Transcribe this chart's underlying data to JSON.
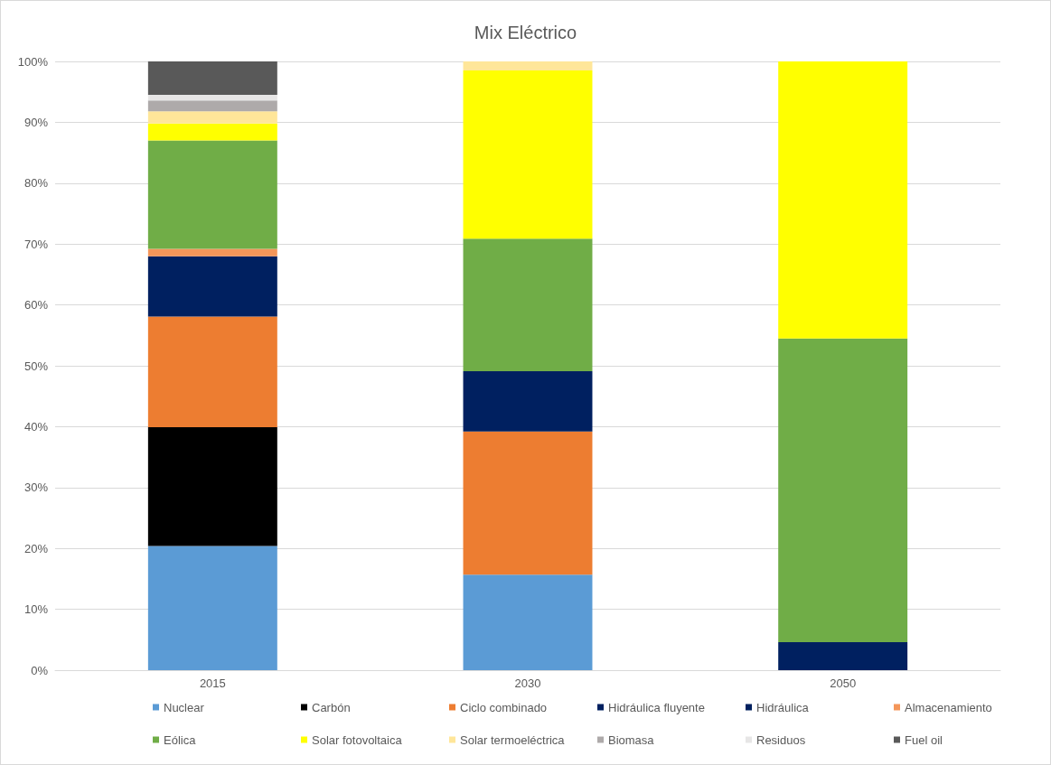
{
  "chart_data": {
    "type": "bar",
    "title": "Mix Eléctrico",
    "stacked": true,
    "categories": [
      "2015",
      "2030",
      "2050"
    ],
    "ylim": [
      0,
      100
    ],
    "yticks": [
      {
        "value": 0,
        "label": "0%"
      },
      {
        "value": 10,
        "label": "10%"
      },
      {
        "value": 20,
        "label": "20%"
      },
      {
        "value": 30,
        "label": "30%"
      },
      {
        "value": 40,
        "label": "40%"
      },
      {
        "value": 50,
        "label": "50%"
      },
      {
        "value": 60,
        "label": "60%"
      },
      {
        "value": 70,
        "label": "70%"
      },
      {
        "value": 80,
        "label": "80%"
      },
      {
        "value": 90,
        "label": "90%"
      },
      {
        "value": 100,
        "label": "100%"
      }
    ],
    "grid": "y",
    "legend": "bottom",
    "series": [
      {
        "name": "Nuclear",
        "color": "#5b9bd5",
        "values": [
          20.4,
          15.7,
          0
        ]
      },
      {
        "name": "Carbón",
        "color": "#000000",
        "values": [
          19.5,
          0,
          0
        ]
      },
      {
        "name": "Ciclo combinado",
        "color": "#ed7d31",
        "values": [
          18.2,
          23.5,
          0
        ]
      },
      {
        "name": "Hidráulica fluyente",
        "color": "#002060",
        "values": [
          9.9,
          9.9,
          4.6
        ]
      },
      {
        "name": "Hidráulica",
        "color": "#00205f",
        "values": [
          0,
          0,
          0
        ]
      },
      {
        "name": "Almacenamiento",
        "color": "#f4965a",
        "values": [
          1.2,
          0,
          0
        ]
      },
      {
        "name": "Eólica",
        "color": "#70ad47",
        "values": [
          17.8,
          21.8,
          49.9
        ]
      },
      {
        "name": "Solar fotovoltaica",
        "color": "#ffff00",
        "values": [
          2.8,
          27.6,
          45.5
        ]
      },
      {
        "name": "Solar termoeléctrica",
        "color": "#ffe699",
        "values": [
          2.0,
          1.5,
          0
        ]
      },
      {
        "name": "Biomasa",
        "color": "#aeaaaa",
        "values": [
          1.8,
          0,
          0
        ]
      },
      {
        "name": "Residuos",
        "color": "#e7e6e6",
        "values": [
          0.9,
          0,
          0
        ]
      },
      {
        "name": "Fuel oil",
        "color": "#595959",
        "values": [
          5.5,
          0,
          0
        ]
      }
    ]
  }
}
